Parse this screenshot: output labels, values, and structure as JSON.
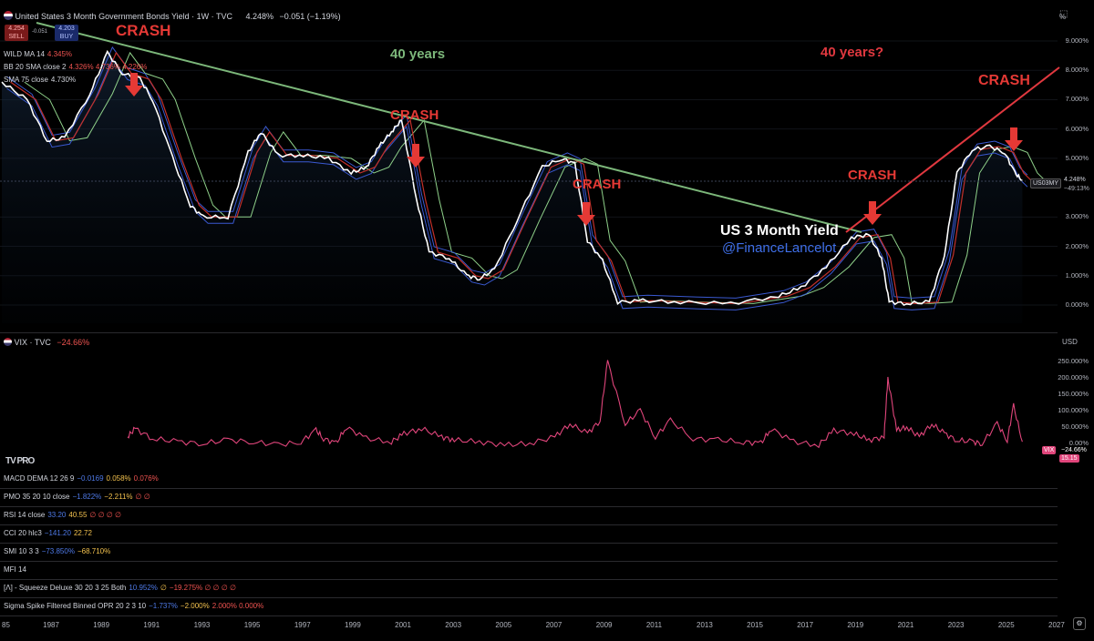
{
  "header": {
    "title": "United States 3 Month Government Bonds Yield · 1W · TVC",
    "last": "4.248%",
    "change": "−0.051 (−1.19%)",
    "sell_price": "4.254",
    "sell_label": "SELL",
    "spread": "-0.051",
    "buy_price": "4.203",
    "buy_label": "BUY",
    "currency": "%"
  },
  "overlays": [
    {
      "name": "WILD MA 14",
      "value": "4.345%",
      "color": "#ef5350"
    },
    {
      "name": "BB 20 SMA close 2",
      "value": "4.326%  4.736%  4.226%",
      "color": "#ef5350"
    },
    {
      "name": "SMA 75 close",
      "value": "4.730%",
      "color": "#d1d4dc"
    }
  ],
  "annotations": {
    "crash": "CRASH",
    "years_40": "40 years",
    "years_40_q": "40 years?",
    "series_title": "US 3 Month Yield",
    "handle": "@FinanceLancelot"
  },
  "price_axis": {
    "ticks": [
      "9.000%",
      "8.000%",
      "7.000%",
      "6.000%",
      "5.000%",
      "3.000%",
      "2.000%",
      "1.000%",
      "0.000%"
    ],
    "symbol_tag": "US03MY",
    "last_tag": "4.248%",
    "countdown": "~49:13%"
  },
  "vix": {
    "title": "VIX · TVC",
    "value": "−24.66%",
    "currency": "USD",
    "ticks": [
      "250.000%",
      "200.000%",
      "150.000%",
      "100.000%",
      "50.000%",
      "0.00%"
    ],
    "tag_symbol": "VIX",
    "tag_value": "−24.66%",
    "tag_price": "15.15",
    "logo": "TV PRO"
  },
  "indicators": [
    {
      "name": "MACD DEMA 12 26 9",
      "vals": [
        "−0.0169",
        "0.058%",
        "0.076%"
      ]
    },
    {
      "name": "PMO 35 20 10 close",
      "vals": [
        "−1.822%",
        "−2.211%",
        "∅ ∅"
      ]
    },
    {
      "name": "RSI 14 close",
      "vals": [
        "33.20",
        "40.55",
        "∅ ∅ ∅ ∅"
      ]
    },
    {
      "name": "CCI 20 hlc3",
      "vals": [
        "−141.20",
        "22.72",
        ""
      ]
    },
    {
      "name": "SMI 10 3 3",
      "vals": [
        "−73.850%",
        "−68.710%",
        ""
      ]
    },
    {
      "name": "MFI 14",
      "vals": [
        "",
        "",
        ""
      ]
    },
    {
      "name": "[Λ] - Squeeze Deluxe 30 20 3 25 Both",
      "vals": [
        "10.952%",
        "∅",
        "−19.275%  ∅ ∅ ∅ ∅"
      ]
    },
    {
      "name": "Sigma Spike Filtered Binned OPR 20 2 3 10",
      "vals": [
        "−1.737%",
        "−2.000%",
        "2.000%  0.000%"
      ]
    }
  ],
  "time_axis": [
    "85",
    "1987",
    "1989",
    "1991",
    "1993",
    "1995",
    "1997",
    "1999",
    "2001",
    "2003",
    "2005",
    "2007",
    "2009",
    "2011",
    "2013",
    "2015",
    "2017",
    "2019",
    "2021",
    "2023",
    "2025",
    "2027"
  ],
  "colors": {
    "background": "#000000",
    "price_line": "#ffffff",
    "ma_red": "#c2302a",
    "bb_blue": "#3a59d1",
    "sma_green": "#8fd18a",
    "trend_green": "#7cb77a",
    "trend_red": "#e0383f",
    "crash_text": "#e53935",
    "vix_line": "#e0457b",
    "handle_blue": "#3f6fe8"
  },
  "chart_data": [
    {
      "type": "line",
      "title": "United States 3 Month Government Bonds Yield · 1W · TVC",
      "xlabel": "",
      "ylabel": "%",
      "ylim": [
        0,
        9.5
      ],
      "xlim": [
        1985,
        2027
      ],
      "x": [
        1985.0,
        1986.0,
        1986.8,
        1987.5,
        1988.5,
        1989.2,
        1989.8,
        1990.5,
        1991.0,
        1991.8,
        1992.5,
        1993.0,
        1994.0,
        1994.8,
        1995.3,
        1996.0,
        1997.0,
        1998.0,
        1998.9,
        1999.5,
        2000.0,
        2000.5,
        2000.9,
        2001.5,
        2002.0,
        2002.8,
        2003.5,
        2004.0,
        2004.6,
        2005.5,
        2006.5,
        2007.3,
        2007.8,
        2008.3,
        2008.9,
        2009.5,
        2010.5,
        2012.0,
        2014.0,
        2015.9,
        2016.8,
        2017.8,
        2018.8,
        2019.5,
        2020.0,
        2020.3,
        2021.0,
        2021.9,
        2022.5,
        2023.0,
        2023.6,
        2024.3,
        2024.9,
        2025.3,
        2025.6
      ],
      "series": [
        {
          "name": "US 3 Month Yield",
          "values": [
            7.6,
            7.0,
            5.6,
            5.7,
            7.2,
            8.6,
            7.9,
            7.7,
            7.0,
            5.0,
            3.4,
            3.0,
            3.0,
            5.2,
            5.9,
            5.1,
            5.1,
            5.0,
            4.5,
            4.7,
            5.4,
            5.9,
            6.3,
            3.6,
            1.8,
            1.6,
            1.0,
            0.9,
            1.2,
            2.9,
            4.7,
            5.0,
            4.8,
            2.2,
            1.5,
            0.1,
            0.15,
            0.1,
            0.05,
            0.3,
            0.6,
            1.3,
            2.3,
            2.4,
            1.6,
            0.1,
            0.05,
            0.1,
            1.7,
            4.5,
            5.3,
            5.4,
            5.2,
            4.5,
            4.25
          ]
        }
      ]
    },
    {
      "type": "line",
      "title": "VIX · TVC",
      "xlabel": "",
      "ylabel": "",
      "ylim": [
        -20,
        280
      ],
      "xlim": [
        1985,
        2027
      ],
      "x": [
        1990.0,
        1990.3,
        1991.0,
        1992.0,
        1993.0,
        1994.0,
        1995.0,
        1996.0,
        1996.9,
        1997.5,
        1997.8,
        1998.3,
        1998.7,
        1999.5,
        2000.5,
        2001.0,
        2001.7,
        2002.5,
        2003.0,
        2004.0,
        2005.0,
        2006.0,
        2007.0,
        2007.6,
        2008.3,
        2008.8,
        2009.1,
        2009.8,
        2010.4,
        2011.0,
        2011.6,
        2012.5,
        2013.5,
        2014.5,
        2015.2,
        2015.6,
        2016.5,
        2017.5,
        2018.1,
        2018.9,
        2019.5,
        2020.1,
        2020.25,
        2020.6,
        2021.0,
        2021.5,
        2022.0,
        2022.5,
        2023.0,
        2023.6,
        2024.0,
        2024.6,
        2025.0,
        2025.25,
        2025.6
      ],
      "series": [
        {
          "name": "VIX",
          "values": [
            20,
            45,
            15,
            5,
            0,
            10,
            5,
            -5,
            5,
            40,
            15,
            0,
            50,
            15,
            5,
            30,
            45,
            20,
            10,
            5,
            -5,
            0,
            20,
            60,
            30,
            70,
            250,
            60,
            100,
            20,
            70,
            15,
            10,
            5,
            0,
            45,
            5,
            -5,
            40,
            30,
            10,
            20,
            200,
            40,
            50,
            20,
            60,
            30,
            10,
            5,
            0,
            60,
            10,
            115,
            5
          ]
        }
      ]
    }
  ]
}
